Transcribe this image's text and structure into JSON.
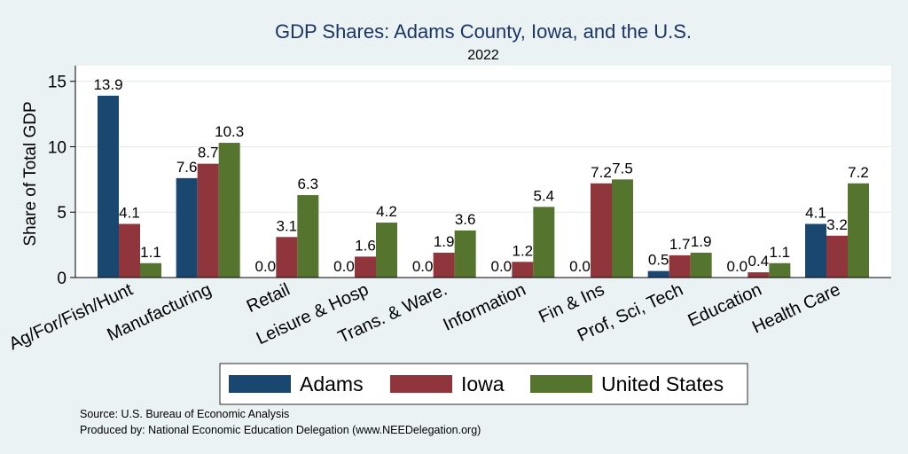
{
  "chart_data": {
    "type": "bar",
    "title": "GDP Shares: Adams County, Iowa, and the U.S.",
    "subtitle": "2022",
    "xlabel": "",
    "ylabel": "Share of Total GDP",
    "ylim": [
      0,
      16.2
    ],
    "yticks": [
      0,
      5,
      10,
      15
    ],
    "grid": true,
    "legend_position": "bottom",
    "data_labels": true,
    "categories": [
      "Ag/For/Fish/Hunt",
      "Manufacturing",
      "Retail",
      "Leisure & Hosp",
      "Trans. & Ware.",
      "Information",
      "Fin & Ins",
      "Prof, Sci, Tech",
      "Education",
      "Health Care"
    ],
    "series": [
      {
        "name": "Adams",
        "color": "#1a476f",
        "values": [
          13.9,
          7.6,
          0.0,
          0.0,
          0.0,
          0.0,
          0.0,
          0.5,
          0.0,
          4.1
        ]
      },
      {
        "name": "Iowa",
        "color": "#90353b",
        "values": [
          4.1,
          8.7,
          3.1,
          1.6,
          1.9,
          1.2,
          7.2,
          1.7,
          0.4,
          3.2
        ]
      },
      {
        "name": "United States",
        "color": "#55752f",
        "values": [
          1.1,
          10.3,
          6.3,
          4.2,
          3.6,
          5.4,
          7.5,
          1.9,
          1.1,
          7.2
        ]
      }
    ]
  },
  "footer": {
    "source": "Source: U.S. Bureau of Economic Analysis",
    "produced_by": "Produced by: National Economic Education Delegation (www.NEEDelegation.org)"
  }
}
